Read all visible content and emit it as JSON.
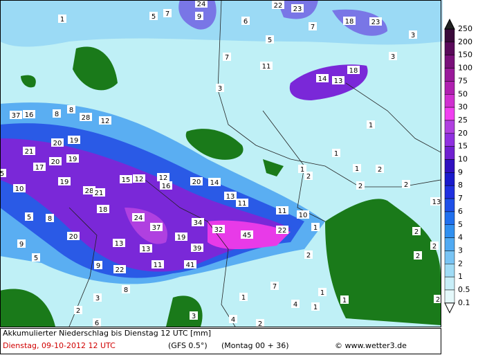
{
  "map": {
    "legend_labels": [
      250,
      200,
      150,
      100,
      75,
      50,
      30,
      25,
      20,
      15,
      10,
      9,
      8,
      7,
      6,
      5,
      4,
      3,
      2,
      1,
      0.5,
      0.1
    ],
    "legend_colors": [
      "#3a0a3a",
      "#5a0a5a",
      "#7a107a",
      "#9a1a9a",
      "#b020b0",
      "#d030d0",
      "#f040f0",
      "#b040e0",
      "#9030e0",
      "#7020d0",
      "#3010c0",
      "#1a1acc",
      "#2030e0",
      "#1f50e8",
      "#2070ee",
      "#3090f0",
      "#50aaf2",
      "#78c4f4",
      "#a0dcf6",
      "#c8eef8",
      "#e4f8fa"
    ],
    "labels": [
      "1",
      "5",
      "7",
      "24",
      "9",
      "6",
      "22",
      "23",
      "7",
      "18",
      "23",
      "3",
      "5",
      "7",
      "11",
      "3",
      "18",
      "14",
      "13",
      "3",
      "37",
      "16",
      "8",
      "8",
      "28",
      "12",
      "1",
      "21",
      "20",
      "19",
      "17",
      "20",
      "19",
      "1",
      "1",
      "2",
      "1",
      "2",
      "15",
      "12",
      "12",
      "16",
      "20",
      "14",
      "5",
      "10",
      "19",
      "28",
      "21",
      "13",
      "11",
      "2",
      "2",
      "13",
      "5",
      "8",
      "18",
      "24",
      "37",
      "34",
      "32",
      "45",
      "22",
      "11",
      "10",
      "1",
      "20",
      "9",
      "13",
      "13",
      "19",
      "39",
      "2",
      "2",
      "5",
      "9",
      "22",
      "11",
      "41",
      "2",
      "2",
      "8",
      "7",
      "1",
      "3",
      "2",
      "4",
      "1",
      "1",
      "1",
      "2",
      "4",
      "6",
      "2",
      "3"
    ],
    "title": "Akkumulierter Niederschlag bis Dienstag 12 UTC [mm]",
    "valid_time": "Dienstag, 09-10-2012  12 UTC",
    "model": "(GFS 0.5°)",
    "run": "(Montag 00 + 36)",
    "credit": "© www.wetter3.de"
  }
}
